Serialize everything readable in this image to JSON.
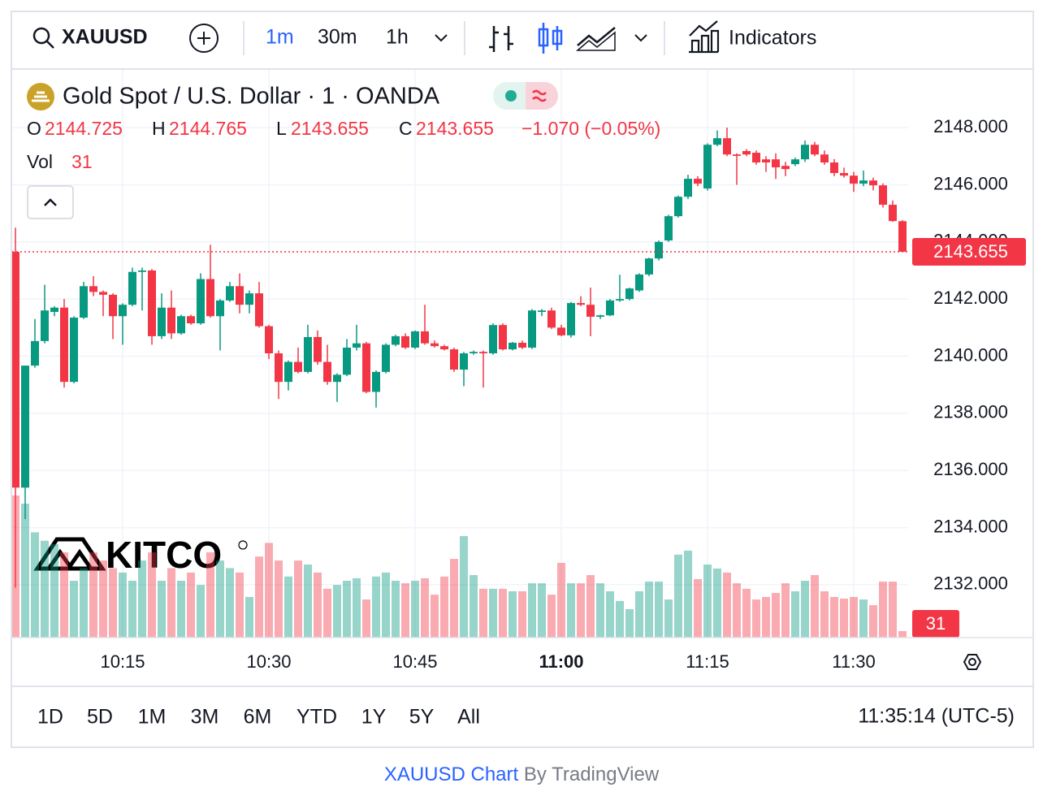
{
  "toolbar": {
    "symbol": "XAUUSD",
    "intervals": [
      "1m",
      "30m",
      "1h"
    ],
    "indicators": "Indicators"
  },
  "legend": {
    "title": "Gold Spot / U.S. Dollar · 1 · OANDA",
    "ohlc": [
      {
        "key": "O",
        "value": "2144.725"
      },
      {
        "key": "H",
        "value": "2144.765"
      },
      {
        "key": "L",
        "value": "2143.655"
      },
      {
        "key": "C",
        "value": "2143.655"
      }
    ],
    "change": "−1.070 (−0.05%)",
    "vol_key": "Vol",
    "vol_value": "31"
  },
  "chart_data": {
    "type": "candlestick",
    "categories": [
      null,
      null,
      null,
      null,
      null,
      null,
      null,
      null,
      null,
      null,
      null,
      "10:15",
      null,
      null,
      null,
      null,
      null,
      null,
      null,
      null,
      null,
      null,
      null,
      null,
      null,
      null,
      "10:30",
      null,
      null,
      null,
      null,
      null,
      null,
      null,
      null,
      null,
      null,
      null,
      null,
      null,
      null,
      "10:45",
      null,
      null,
      null,
      null,
      null,
      null,
      null,
      null,
      null,
      null,
      null,
      null,
      null,
      null,
      "11:00",
      null,
      null,
      null,
      null,
      null,
      null,
      null,
      null,
      null,
      null,
      null,
      null,
      null,
      null,
      "11:15",
      null,
      null,
      null,
      null,
      null,
      null,
      null,
      null,
      null,
      null,
      null,
      null,
      null,
      null,
      "11:30",
      null,
      null,
      null,
      null,
      null
    ],
    "open": [
      2143.65,
      2135.4,
      2139.67,
      2140.53,
      2141.55,
      2141.7,
      2139.1,
      2141.35,
      2142.45,
      2142.25,
      2142.15,
      2141.4,
      2141.8,
      2142.95,
      2143.0,
      2140.7,
      2141.7,
      2140.8,
      2141.4,
      2141.15,
      2142.7,
      2141.4,
      2141.95,
      2142.45,
      2141.8,
      2142.2,
      2141.05,
      2140.1,
      2139.1,
      2139.8,
      2139.45,
      2140.67,
      2139.8,
      2139.1,
      2139.35,
      2140.3,
      2140.45,
      2138.75,
      2139.45,
      2140.4,
      2140.7,
      2140.3,
      2140.87,
      2140.45,
      2140.35,
      2140.24,
      2139.53,
      2140.1,
      2140.15,
      2140.1,
      2141.09,
      2140.24,
      2140.47,
      2140.3,
      2141.55,
      2141.6,
      2141.0,
      2140.73,
      2141.86,
      2141.8,
      2141.38,
      2141.43,
      2141.95,
      2142.0,
      2142.3,
      2142.86,
      2143.42,
      2144.05,
      2144.9,
      2145.58,
      2146.21,
      2145.87,
      2147.4,
      2147.63,
      2147.06,
      2147.18,
      2147.12,
      2146.89,
      2146.89,
      2146.66,
      2146.72,
      2146.89,
      2147.4,
      2147.06,
      2146.78,
      2146.41,
      2146.32,
      2146.04,
      2146.15,
      2145.98,
      2145.3,
      2144.725
    ],
    "high": [
      2144.5,
      2139.67,
      2141.3,
      2142.5,
      2141.75,
      2142.0,
      2141.4,
      2142.6,
      2142.8,
      2142.3,
      2142.2,
      2141.85,
      2143.1,
      2143.1,
      2143.05,
      2142.2,
      2142.3,
      2141.45,
      2141.45,
      2142.9,
      2143.9,
      2142.0,
      2142.6,
      2142.9,
      2142.3,
      2142.6,
      2141.1,
      2140.2,
      2139.85,
      2140.3,
      2141.1,
      2140.9,
      2140.4,
      2139.4,
      2140.6,
      2141.1,
      2140.5,
      2139.5,
      2140.45,
      2140.75,
      2140.8,
      2140.9,
      2141.8,
      2140.55,
      2140.4,
      2140.3,
      2140.15,
      2140.2,
      2140.2,
      2141.15,
      2141.15,
      2140.5,
      2140.55,
      2141.65,
      2141.65,
      2141.7,
      2141.1,
      2141.9,
      2142.1,
      2142.4,
      2141.45,
      2142.0,
      2142.85,
      2142.4,
      2142.9,
      2143.45,
      2144.05,
      2144.95,
      2145.62,
      2146.35,
      2146.3,
      2147.45,
      2147.9,
      2148.0,
      2147.1,
      2147.25,
      2147.2,
      2147.0,
      2147.1,
      2146.8,
      2146.95,
      2147.55,
      2147.5,
      2147.2,
      2146.9,
      2146.6,
      2146.45,
      2146.5,
      2146.25,
      2146.05,
      2145.45,
      2144.765
    ],
    "low": [
      2131.9,
      2134.3,
      2139.6,
      2140.45,
      2141.4,
      2138.9,
      2139.05,
      2141.3,
      2142.1,
      2141.4,
      2140.6,
      2140.4,
      2141.75,
      2141.6,
      2140.4,
      2140.6,
      2140.6,
      2140.75,
      2141.1,
      2141.1,
      2141.35,
      2140.2,
      2141.9,
      2141.5,
      2141.5,
      2141.0,
      2139.9,
      2138.5,
      2138.8,
      2139.4,
      2139.4,
      2139.7,
      2139.0,
      2138.4,
      2139.3,
      2140.2,
      2138.7,
      2138.2,
      2139.4,
      2140.35,
      2140.25,
      2140.25,
      2140.4,
      2140.3,
      2140.2,
      2139.45,
      2138.95,
      2140.05,
      2138.9,
      2140.05,
      2140.2,
      2140.2,
      2140.25,
      2140.25,
      2141.4,
      2140.95,
      2140.7,
      2140.65,
      2141.75,
      2140.7,
      2141.3,
      2141.4,
      2141.9,
      2141.95,
      2142.25,
      2142.8,
      2143.35,
      2144.0,
      2144.85,
      2145.5,
      2145.95,
      2145.8,
      2147.35,
      2147.0,
      2146.0,
      2147.0,
      2146.7,
      2146.45,
      2146.2,
      2146.3,
      2146.65,
      2146.8,
      2147.0,
      2146.7,
      2146.3,
      2146.25,
      2145.75,
      2145.95,
      2145.8,
      2145.2,
      2144.7,
      2143.655
    ],
    "close": [
      2135.4,
      2139.67,
      2140.53,
      2141.6,
      2141.7,
      2139.1,
      2141.35,
      2142.45,
      2142.25,
      2142.15,
      2141.4,
      2141.8,
      2142.95,
      2143.0,
      2140.7,
      2141.7,
      2140.8,
      2141.4,
      2141.15,
      2142.7,
      2141.4,
      2141.95,
      2142.45,
      2141.8,
      2142.2,
      2141.05,
      2140.1,
      2139.1,
      2139.8,
      2139.45,
      2140.67,
      2139.8,
      2139.1,
      2139.35,
      2140.3,
      2140.45,
      2138.75,
      2139.45,
      2140.4,
      2140.7,
      2140.3,
      2140.87,
      2140.45,
      2140.35,
      2140.24,
      2139.53,
      2140.1,
      2140.15,
      2140.1,
      2141.09,
      2140.24,
      2140.47,
      2140.3,
      2141.6,
      2141.6,
      2141.0,
      2140.73,
      2141.86,
      2141.8,
      2141.38,
      2141.43,
      2141.95,
      2142.0,
      2142.37,
      2142.86,
      2143.42,
      2144.0,
      2144.9,
      2145.58,
      2146.21,
      2146.04,
      2147.4,
      2147.63,
      2147.06,
      2147.01,
      2147.06,
      2146.78,
      2146.78,
      2146.61,
      2146.55,
      2146.89,
      2147.4,
      2147.06,
      2146.78,
      2146.41,
      2146.32,
      2146.04,
      2146.15,
      2145.98,
      2145.3,
      2144.73,
      2143.655
    ],
    "volume": [
      675,
      636,
      500,
      460,
      444,
      405,
      270,
      330,
      405,
      366,
      330,
      309,
      270,
      366,
      405,
      270,
      330,
      270,
      309,
      250,
      405,
      366,
      330,
      309,
      193,
      385,
      450,
      366,
      290,
      366,
      347,
      309,
      232,
      250,
      270,
      282,
      181,
      290,
      309,
      270,
      258,
      270,
      282,
      204,
      290,
      374,
      482,
      297,
      232,
      232,
      232,
      220,
      220,
      258,
      258,
      204,
      355,
      258,
      258,
      297,
      258,
      220,
      174,
      135,
      220,
      266,
      266,
      181,
      394,
      413,
      278,
      347,
      328,
      309,
      258,
      232,
      181,
      193,
      212,
      258,
      220,
      270,
      297,
      220,
      193,
      185,
      193,
      181,
      154,
      266,
      266,
      31
    ],
    "up_color": "#089981",
    "down_color": "#f23645",
    "ylim": [
      2130.15,
      2150.05
    ],
    "yticks": [
      {
        "value": 2132,
        "label": "2132.000"
      },
      {
        "value": 2134,
        "label": "2134.000"
      },
      {
        "value": 2136,
        "label": "2136.000"
      },
      {
        "value": 2138,
        "label": "2138.000"
      },
      {
        "value": 2140,
        "label": "2140.000"
      },
      {
        "value": 2142,
        "label": "2142.000"
      },
      {
        "value": 2144,
        "label": "2144.000"
      },
      {
        "value": 2146,
        "label": "2146.000"
      },
      {
        "value": 2148,
        "label": "2148.000"
      }
    ],
    "grid": true,
    "last_price_label": "2143.655",
    "last_volume_label": "31",
    "watermark": "KITCO"
  },
  "bottom_bar": {
    "ranges": [
      "1D",
      "5D",
      "1M",
      "3M",
      "6M",
      "YTD",
      "1Y",
      "5Y",
      "All"
    ],
    "clock": "11:35:14 (UTC-5)"
  },
  "footer": {
    "link": "XAUUSD Chart",
    "by": "By TradingView"
  }
}
